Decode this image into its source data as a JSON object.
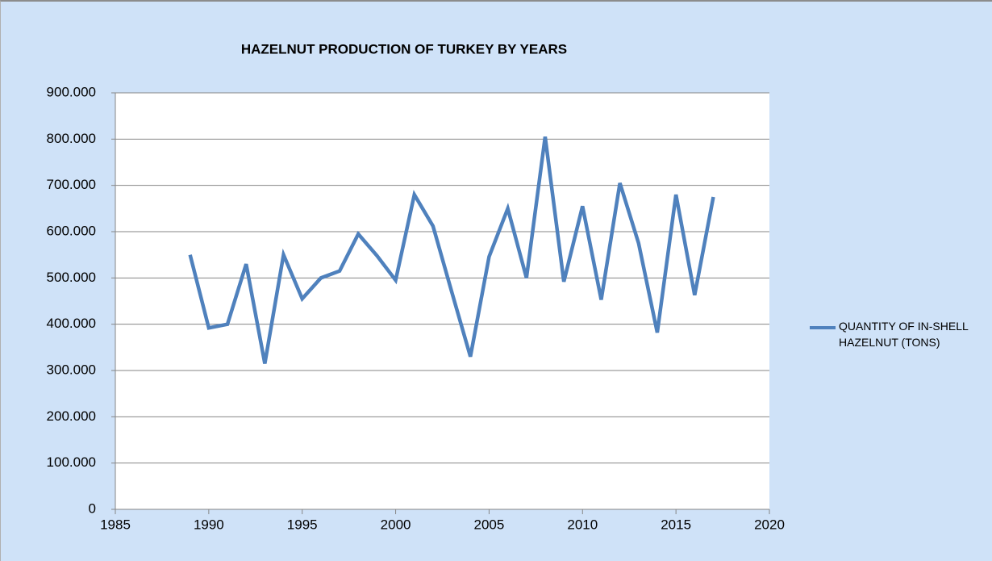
{
  "chart_data": {
    "type": "line",
    "title": "HAZELNUT PRODUCTION OF TURKEY BY YEARS",
    "x": [
      1989,
      1990,
      1991,
      1992,
      1993,
      1994,
      1995,
      1996,
      1997,
      1998,
      1999,
      2000,
      2001,
      2002,
      2003,
      2004,
      2005,
      2006,
      2007,
      2008,
      2009,
      2010,
      2011,
      2012,
      2013,
      2014,
      2015,
      2016,
      2017
    ],
    "series": [
      {
        "name": "QUANTITY OF IN-SHELL HAZELNUT (TONS)",
        "color": "#4f81bd",
        "values": [
          550000,
          392000,
          400000,
          530000,
          315000,
          550000,
          455000,
          500000,
          515000,
          595000,
          548000,
          495000,
          680000,
          612000,
          470000,
          330000,
          546000,
          650000,
          500000,
          805000,
          492000,
          655000,
          453000,
          705000,
          575000,
          382000,
          680000,
          463000,
          675000
        ]
      }
    ],
    "xlim": [
      1985,
      2020
    ],
    "xticks": [
      1985,
      1990,
      1995,
      2000,
      2005,
      2010,
      2015,
      2020
    ],
    "ylim": [
      0,
      900000
    ],
    "yticks": [
      0,
      {
        "value": 100000,
        "label": "100.000"
      },
      {
        "value": 200000,
        "label": "200.000"
      },
      {
        "value": 300000,
        "label": "300.000"
      },
      {
        "value": 400000,
        "label": "400.000"
      },
      {
        "value": 500000,
        "label": "500.000"
      },
      {
        "value": 600000,
        "label": "600.000"
      },
      {
        "value": 700000,
        "label": "700.000"
      },
      {
        "value": 800000,
        "label": "800.000"
      },
      {
        "value": 900000,
        "label": "900.000"
      }
    ],
    "grid": true,
    "legend": "right"
  }
}
